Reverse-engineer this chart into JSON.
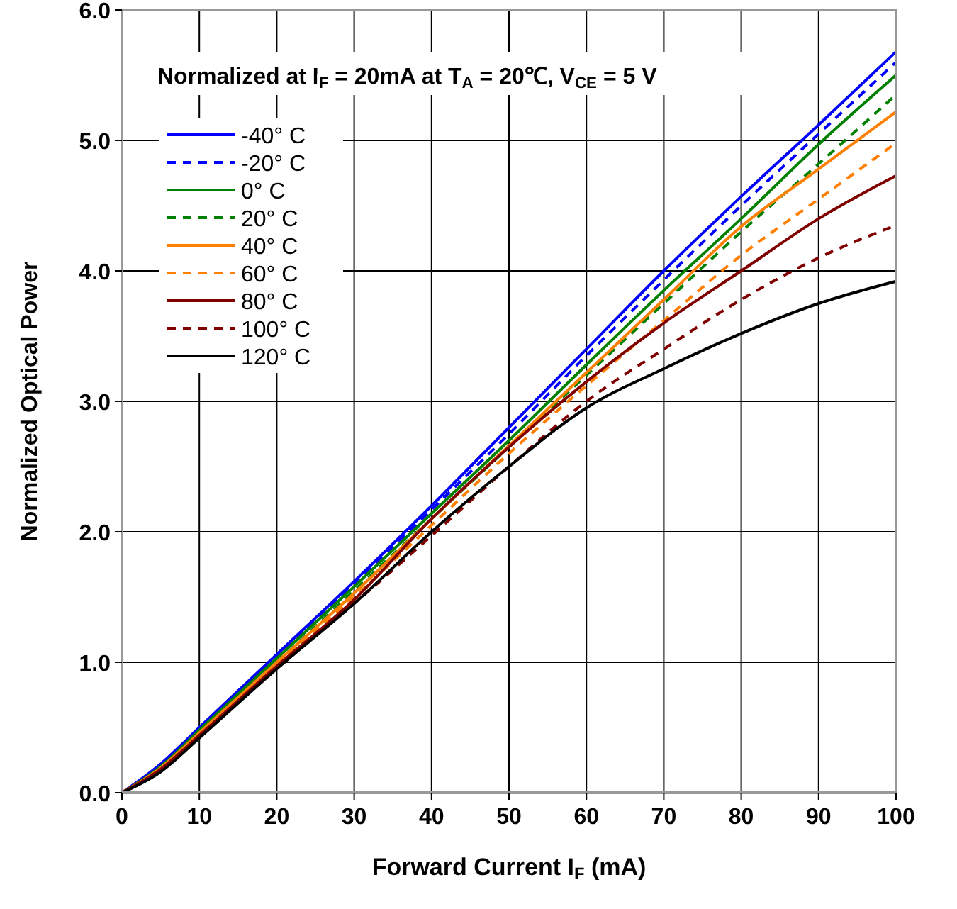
{
  "chart_data": {
    "type": "line",
    "title": "Normalized at I$_{F}$ = 20mA at T$_{A}$ = 20℃, V$_{CE}$ = 5 V",
    "xlabel": "Forward Current I$_{F}$ (mA)",
    "ylabel": "Normalized Optical Power",
    "x": [
      0,
      5,
      10,
      20,
      30,
      40,
      50,
      60,
      70,
      80,
      90,
      100
    ],
    "xlim": [
      0,
      100
    ],
    "xticks": [
      0,
      10,
      20,
      30,
      40,
      50,
      60,
      70,
      80,
      90,
      100
    ],
    "ylim": [
      0,
      6
    ],
    "yticks": [
      {
        "value": 0,
        "label": "0.0"
      },
      {
        "value": 1,
        "label": "1.0"
      },
      {
        "value": 2,
        "label": "2.0"
      },
      {
        "value": 3,
        "label": "3.0"
      },
      {
        "value": 4,
        "label": "4.0"
      },
      {
        "value": 5,
        "label": "5.0"
      },
      {
        "value": 6,
        "label": "6.0"
      }
    ],
    "grid": true,
    "legend": "top left",
    "series": [
      {
        "name": "-40° C",
        "color": "#0000ff",
        "line_style": "solid",
        "values": [
          0,
          0.22,
          0.5,
          1.06,
          1.62,
          2.2,
          2.8,
          3.4,
          4.0,
          4.57,
          5.12,
          5.68
        ]
      },
      {
        "name": "-20° C",
        "color": "#0000ff",
        "line_style": "dashed",
        "values": [
          0,
          0.21,
          0.49,
          1.04,
          1.6,
          2.17,
          2.75,
          3.35,
          3.93,
          4.5,
          5.05,
          5.6
        ]
      },
      {
        "name": "0° C",
        "color": "#008000",
        "line_style": "solid",
        "values": [
          0,
          0.2,
          0.48,
          1.03,
          1.58,
          2.14,
          2.7,
          3.28,
          3.85,
          4.4,
          4.97,
          5.5
        ]
      },
      {
        "name": "20° C",
        "color": "#008000",
        "line_style": "dashed",
        "values": [
          0,
          0.2,
          0.47,
          1.0,
          1.55,
          2.1,
          2.65,
          3.2,
          3.75,
          4.3,
          4.82,
          5.35
        ]
      },
      {
        "name": "40° C",
        "color": "#ff7f00",
        "line_style": "solid",
        "values": [
          0,
          0.19,
          0.46,
          1.0,
          1.53,
          2.1,
          2.66,
          3.22,
          3.78,
          4.34,
          4.78,
          5.22
        ]
      },
      {
        "name": "60° C",
        "color": "#ff7f00",
        "line_style": "dashed",
        "values": [
          0,
          0.18,
          0.45,
          0.98,
          1.5,
          2.05,
          2.6,
          3.12,
          3.62,
          4.12,
          4.55,
          4.98
        ]
      },
      {
        "name": "80° C",
        "color": "#800000",
        "line_style": "solid",
        "values": [
          0,
          0.18,
          0.44,
          0.97,
          1.48,
          2.1,
          2.65,
          3.15,
          3.6,
          4.0,
          4.4,
          4.73
        ]
      },
      {
        "name": "100° C",
        "color": "#800000",
        "line_style": "dashed",
        "values": [
          0,
          0.17,
          0.43,
          0.95,
          1.45,
          1.97,
          2.5,
          3.0,
          3.4,
          3.78,
          4.1,
          4.35
        ]
      },
      {
        "name": "120° C",
        "color": "#000000",
        "line_style": "solid",
        "values": [
          0,
          0.16,
          0.42,
          0.95,
          1.45,
          2.0,
          2.5,
          2.95,
          3.25,
          3.52,
          3.75,
          3.92
        ]
      }
    ]
  }
}
